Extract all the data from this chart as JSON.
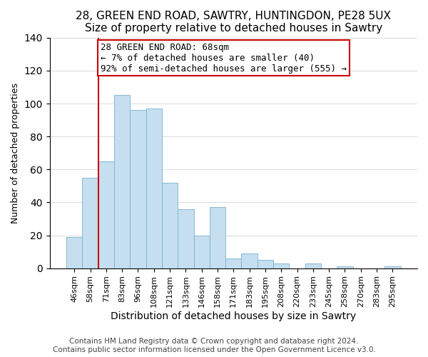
{
  "title": "28, GREEN END ROAD, SAWTRY, HUNTINGDON, PE28 5UX",
  "subtitle": "Size of property relative to detached houses in Sawtry",
  "xlabel": "Distribution of detached houses by size in Sawtry",
  "ylabel": "Number of detached properties",
  "bar_labels": [
    "46sqm",
    "58sqm",
    "71sqm",
    "83sqm",
    "96sqm",
    "108sqm",
    "121sqm",
    "133sqm",
    "146sqm",
    "158sqm",
    "171sqm",
    "183sqm",
    "195sqm",
    "208sqm",
    "220sqm",
    "233sqm",
    "245sqm",
    "258sqm",
    "270sqm",
    "283sqm",
    "295sqm"
  ],
  "bar_heights": [
    19,
    55,
    65,
    105,
    96,
    97,
    52,
    36,
    20,
    37,
    6,
    9,
    5,
    3,
    0,
    3,
    0,
    1,
    0,
    0,
    1
  ],
  "bar_color": "#c5dff0",
  "bar_edge_color": "#7ab0cc",
  "vline_color": "#cc0000",
  "annotation_line1": "28 GREEN END ROAD: 68sqm",
  "annotation_line2": "← 7% of detached houses are smaller (40)",
  "annotation_line3": "92% of semi-detached houses are larger (555) →",
  "annotation_box_color": "#ffffff",
  "annotation_box_edge": "#cc0000",
  "ylim": [
    0,
    140
  ],
  "footer": "Contains HM Land Registry data © Crown copyright and database right 2024.\nContains public sector information licensed under the Open Government Licence v3.0.",
  "title_fontsize": 11,
  "xlabel_fontsize": 10,
  "ylabel_fontsize": 9,
  "tick_fontsize": 8,
  "footer_fontsize": 7.5,
  "annot_fontsize": 9
}
